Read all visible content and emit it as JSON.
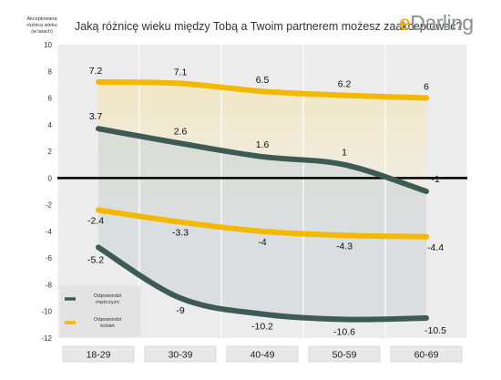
{
  "header": {
    "title": "Jaką różnicę wieku między Tobą a Twoim partnerem możesz zaakceptować?",
    "brand_prefix": "e",
    "brand_rest": "Darling"
  },
  "colors": {
    "men": "#3d5a54",
    "women": "#f4b800",
    "zero_line": "#000000",
    "plot_bg": "#ececec",
    "cat_box": "#e8e8e8"
  },
  "chart_data": {
    "type": "line",
    "categories": [
      "18-29",
      "30-39",
      "40-49",
      "50-59",
      "60-69"
    ],
    "ylabel_lines": [
      "Akceptowana",
      "różnica wieku",
      "(w latach)"
    ],
    "ylim": [
      -12,
      10
    ],
    "yticks": [
      10,
      8,
      6,
      4,
      2,
      0,
      -2,
      -4,
      -6,
      -8,
      -10,
      -12
    ],
    "grid": "vertical",
    "legend_position": "bottom-left",
    "legend": [
      {
        "name_lines": [
          "Odpowiedzi",
          "mężczyzn"
        ],
        "color": "#3d5a54"
      },
      {
        "name_lines": [
          "Odpowiedzi",
          "kobiet"
        ],
        "color": "#f4b800"
      }
    ],
    "series": [
      {
        "key": "women_upper",
        "color": "#f4b800",
        "values": [
          7.2,
          7.1,
          6.5,
          6.2,
          6
        ]
      },
      {
        "key": "men_upper",
        "color": "#3d5a54",
        "values": [
          3.7,
          2.6,
          1.6,
          1,
          -1
        ]
      },
      {
        "key": "women_lower",
        "color": "#f4b800",
        "values": [
          -2.4,
          -3.3,
          -4,
          -4.3,
          -4.4
        ]
      },
      {
        "key": "men_lower",
        "color": "#3d5a54",
        "values": [
          -5.2,
          -9,
          -10.2,
          -10.6,
          -10.5
        ]
      }
    ]
  }
}
